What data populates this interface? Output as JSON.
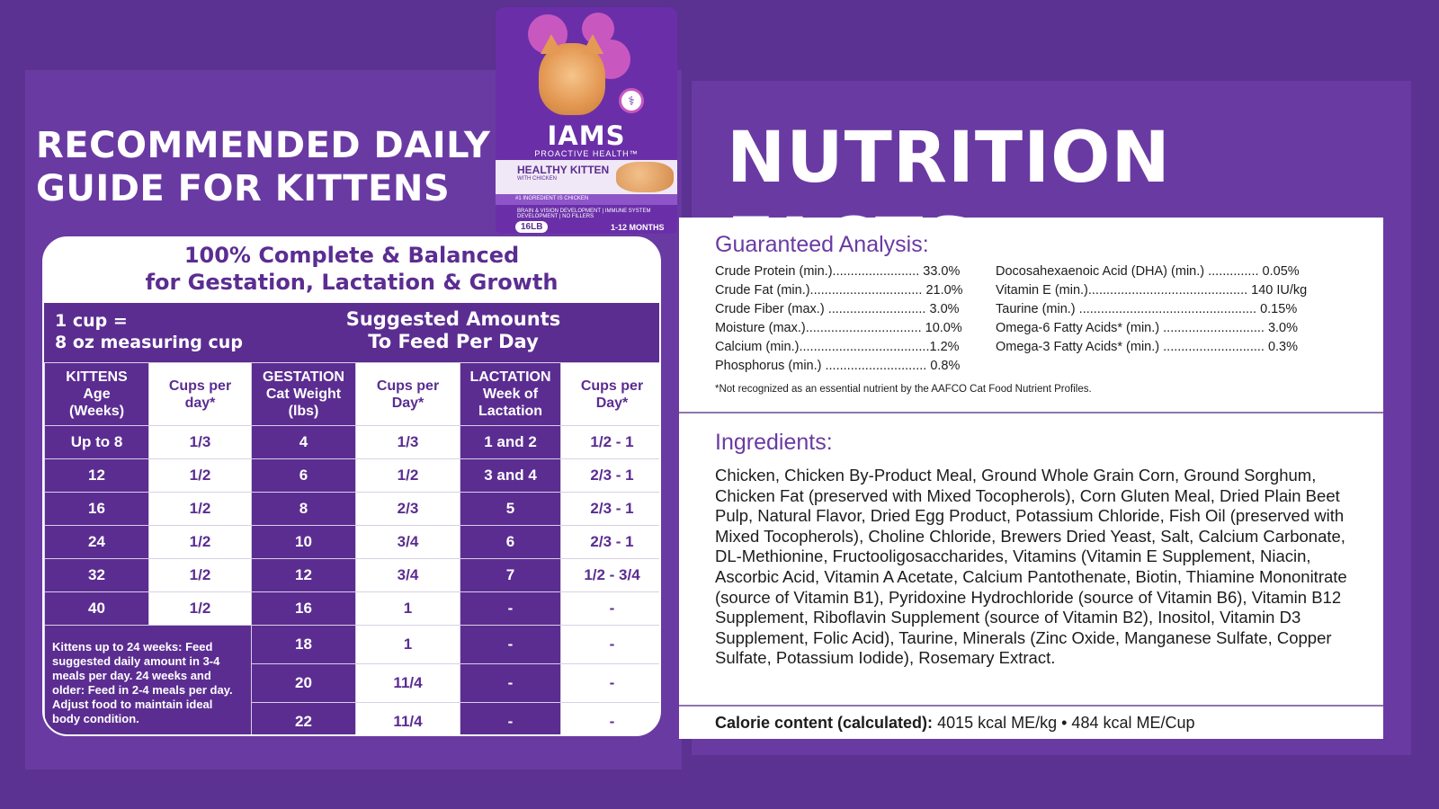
{
  "left_title": {
    "line1": "RECOMMENDED DAILY",
    "line2": "GUIDE FOR KITTENS"
  },
  "right_title": "NUTRITION FACTS",
  "bag": {
    "brand": "IAMS",
    "subbrand": "PROACTIVE HEALTH™",
    "product": "HEALTHY KITTEN",
    "variant": "WITH CHICKEN",
    "strip": "#1 INGREDIENT IS CHICKEN",
    "benefits": "BRAIN & VISION DEVELOPMENT | IMMUNE SYSTEM DEVELOPMENT | NO FILLERS",
    "weight": "16LB",
    "age": "1-12 MONTHS"
  },
  "guide": {
    "heading_line1": "100% Complete & Balanced",
    "heading_line2": "for Gestation, Lactation & Growth",
    "cup_line1": "1 cup =",
    "cup_line2": "8 oz measuring cup",
    "suggested_line1": "Suggested Amounts",
    "suggested_line2": "To Feed Per Day",
    "headers": {
      "h1": [
        "KITTENS",
        "Age",
        "(Weeks)"
      ],
      "h2": [
        "Cups per",
        "day*"
      ],
      "h3": [
        "GESTATION",
        "Cat Weight",
        "(lbs)"
      ],
      "h4": [
        "Cups per",
        "Day*"
      ],
      "h5": [
        "LACTATION",
        "Week of",
        "Lactation"
      ],
      "h6": [
        "Cups per",
        "Day*"
      ]
    },
    "rows": [
      [
        "Up to 8",
        "1/3",
        "4",
        "1/3",
        "1 and 2",
        "1/2 - 1"
      ],
      [
        "12",
        "1/2",
        "6",
        "1/2",
        "3 and 4",
        "2/3 - 1"
      ],
      [
        "16",
        "1/2",
        "8",
        "2/3",
        "5",
        "2/3 - 1"
      ],
      [
        "24",
        "1/2",
        "10",
        "3/4",
        "6",
        "2/3 - 1"
      ],
      [
        "32",
        "1/2",
        "12",
        "3/4",
        "7",
        "1/2 - 3/4"
      ],
      [
        "40",
        "1/2",
        "16",
        "1",
        "-",
        "-"
      ]
    ],
    "extra_rows": [
      [
        "18",
        "1",
        "-",
        "-"
      ],
      [
        "20",
        "11/4",
        "-",
        "-"
      ],
      [
        "22",
        "11/4",
        "-",
        "-"
      ]
    ],
    "note": "Kittens up to 24 weeks: Feed suggested daily amount in 3-4 meals per day. 24 weeks and older: Feed in 2-4 meals per day. Adjust food to maintain ideal body condition."
  },
  "analysis": {
    "title": "Guaranteed Analysis:",
    "left": [
      "Crude Protein (min.)........................ 33.0%",
      "Crude Fat (min.)............................... 21.0%",
      "Crude Fiber (max.) ........................... 3.0%",
      "Moisture (max.)................................ 10.0%",
      "Calcium (min.)....................................1.2%",
      "Phosphorus (min.) ............................ 0.8%"
    ],
    "right": [
      "Docosahexaenoic Acid (DHA) (min.) .............. 0.05%",
      "Vitamin E (min.)............................................ 140 IU/kg",
      "Taurine (min.) ................................................. 0.15%",
      "Omega-6 Fatty Acids* (min.) ............................ 3.0%",
      "Omega-3 Fatty Acids* (min.) ............................ 0.3%"
    ],
    "footnote": "*Not recognized as an essential nutrient by the AAFCO Cat Food Nutrient Profiles."
  },
  "ingredients": {
    "title": "Ingredients:",
    "text": "Chicken, Chicken By-Product Meal, Ground Whole Grain Corn, Ground Sorghum, Chicken Fat (preserved with Mixed Tocopherols), Corn Gluten Meal, Dried Plain Beet Pulp, Natural Flavor, Dried Egg Product, Potassium Chloride, Fish Oil (preserved with Mixed Tocopherols), Choline Chloride, Brewers Dried Yeast, Salt, Calcium Carbonate, DL-Methionine, Fructooligosaccharides, Vitamins (Vitamin E Supplement, Niacin, Ascorbic Acid, Vitamin A Acetate, Calcium Pantothenate, Biotin, Thiamine Mononitrate (source of Vitamin B1), Pyridoxine Hydrochloride (source of Vitamin B6), Vitamin B12 Supplement, Riboflavin Supplement (source of Vitamin B2), Inositol, Vitamin D3 Supplement, Folic Acid), Taurine, Minerals (Zinc Oxide, Manganese Sulfate, Copper Sulfate, Potassium Iodide), Rosemary Extract."
  },
  "calorie": {
    "label": "Calorie content (calculated):",
    "value": "4015 kcal ME/kg • 484 kcal ME/Cup"
  },
  "colors": {
    "purple": "#5b2d91",
    "background": "#5b3191",
    "accent": "#6a3aa3"
  }
}
